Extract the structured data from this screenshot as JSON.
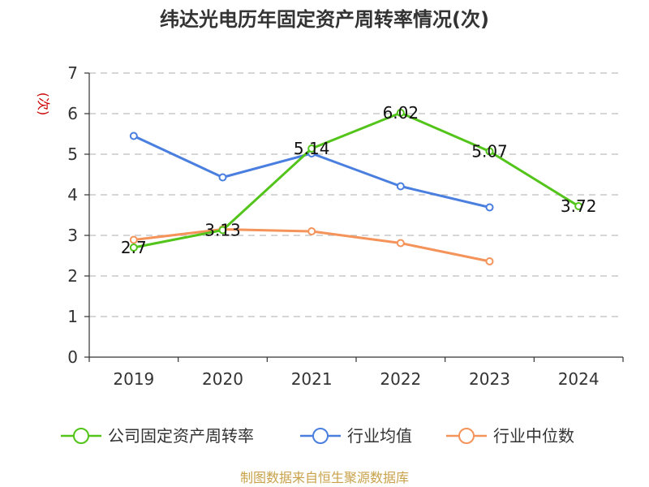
{
  "chart_data": {
    "type": "line",
    "title": "纬达光电历年固定资产周转率情况(次)",
    "ylabel": "(次)",
    "xlabel": "",
    "categories": [
      "2019",
      "2020",
      "2021",
      "2022",
      "2023",
      "2024"
    ],
    "ylim": [
      0,
      7
    ],
    "yticks": [
      0,
      1,
      2,
      3,
      4,
      5,
      6,
      7
    ],
    "grid": true,
    "legend_position": "bottom",
    "series": [
      {
        "name": "公司固定资产周转率",
        "color": "#52c41a",
        "values": [
          2.7,
          3.13,
          5.14,
          6.02,
          5.07,
          3.72
        ],
        "show_labels": true
      },
      {
        "name": "行业均值",
        "color": "#4a7fe0",
        "values": [
          5.45,
          4.43,
          5.02,
          4.21,
          3.69,
          null
        ],
        "show_labels": false
      },
      {
        "name": "行业中位数",
        "color": "#f4935a",
        "values": [
          2.89,
          3.15,
          3.1,
          2.81,
          2.36,
          null
        ],
        "show_labels": false
      }
    ],
    "source": "制图数据来自恒生聚源数据库"
  }
}
